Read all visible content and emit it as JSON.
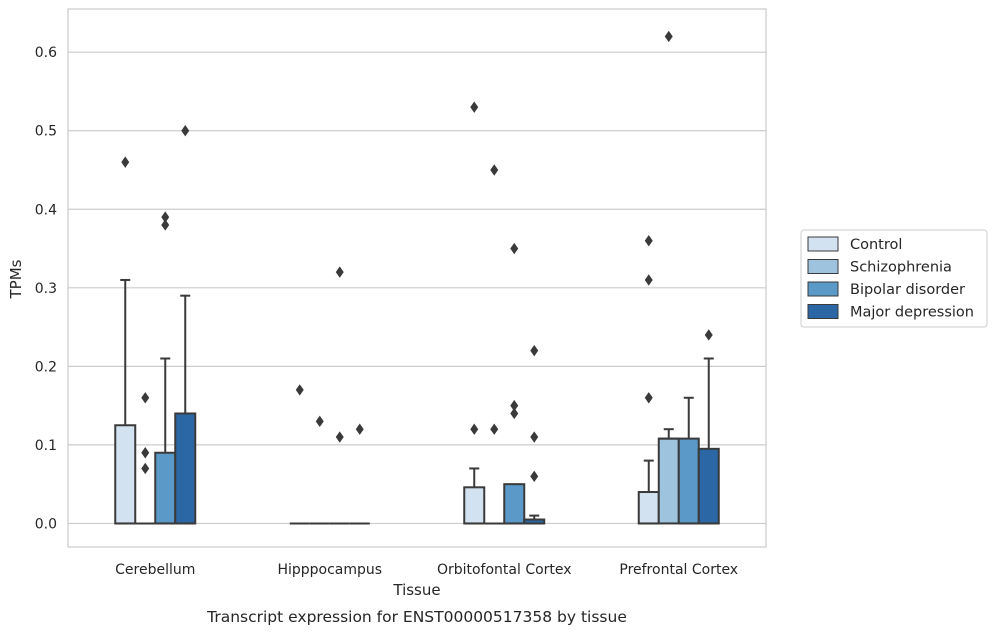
{
  "chart_data": {
    "type": "boxplot",
    "title": "",
    "caption": "Transcript expression for ENST00000517358 by tissue",
    "xlabel": "Tissue",
    "ylabel": "TPMs",
    "ylim": [
      -0.03,
      0.655
    ],
    "yticks": [
      "0.0",
      "0.1",
      "0.2",
      "0.3",
      "0.4",
      "0.5",
      "0.6"
    ],
    "grid": "horizontal",
    "legend_position": "right",
    "categories": [
      "Cerebellum",
      "Hipppocampus",
      "Orbitofontal Cortex",
      "Prefrontal Cortex"
    ],
    "series": [
      {
        "name": "Control",
        "color": "#d3e2f0",
        "boxes": [
          {
            "q1": 0,
            "median": 0,
            "q3": 0.125,
            "whisker_low": 0,
            "whisker_high": 0.31,
            "outliers": [
              0.46
            ]
          },
          {
            "q1": 0,
            "median": 0,
            "q3": 0,
            "whisker_low": 0,
            "whisker_high": 0,
            "outliers": [
              0.17
            ]
          },
          {
            "q1": 0,
            "median": 0,
            "q3": 0.046,
            "whisker_low": 0,
            "whisker_high": 0.07,
            "outliers": [
              0.53,
              0.12
            ]
          },
          {
            "q1": 0,
            "median": 0,
            "q3": 0.04,
            "whisker_low": 0,
            "whisker_high": 0.08,
            "outliers": [
              0.36,
              0.31,
              0.16
            ]
          }
        ]
      },
      {
        "name": "Schizophrenia",
        "color": "#9dc3de",
        "boxes": [
          {
            "q1": 0,
            "median": 0,
            "q3": 0,
            "whisker_low": 0,
            "whisker_high": 0,
            "outliers": [
              0.16,
              0.09,
              0.07
            ]
          },
          {
            "q1": 0,
            "median": 0,
            "q3": 0,
            "whisker_low": 0,
            "whisker_high": 0,
            "outliers": [
              0.13
            ]
          },
          {
            "q1": 0,
            "median": 0,
            "q3": 0,
            "whisker_low": 0,
            "whisker_high": 0,
            "outliers": [
              0.45,
              0.12
            ]
          },
          {
            "q1": 0,
            "median": 0.108,
            "q3": 0.108,
            "whisker_low": 0,
            "whisker_high": 0.12,
            "outliers": [
              0.62
            ]
          }
        ]
      },
      {
        "name": "Bipolar disorder",
        "color": "#5b9ac8",
        "boxes": [
          {
            "q1": 0,
            "median": 0,
            "q3": 0.09,
            "whisker_low": 0,
            "whisker_high": 0.21,
            "outliers": [
              0.39,
              0.38
            ]
          },
          {
            "q1": 0,
            "median": 0,
            "q3": 0,
            "whisker_low": 0,
            "whisker_high": 0,
            "outliers": [
              0.32,
              0.11
            ]
          },
          {
            "q1": 0,
            "median": 0,
            "q3": 0.05,
            "whisker_low": 0,
            "whisker_high": 0.05,
            "outliers": [
              0.35,
              0.15,
              0.14
            ]
          },
          {
            "q1": 0,
            "median": 0,
            "q3": 0.108,
            "whisker_low": 0,
            "whisker_high": 0.16,
            "outliers": []
          }
        ]
      },
      {
        "name": "Major depression",
        "color": "#2a67a4",
        "boxes": [
          {
            "q1": 0,
            "median": 0,
            "q3": 0.14,
            "whisker_low": 0,
            "whisker_high": 0.29,
            "outliers": [
              0.5
            ]
          },
          {
            "q1": 0,
            "median": 0,
            "q3": 0,
            "whisker_low": 0,
            "whisker_high": 0,
            "outliers": [
              0.12
            ]
          },
          {
            "q1": 0,
            "median": 0,
            "q3": 0.005,
            "whisker_low": 0,
            "whisker_high": 0.01,
            "outliers": [
              0.22,
              0.11,
              0.06
            ]
          },
          {
            "q1": 0,
            "median": 0,
            "q3": 0.095,
            "whisker_low": 0,
            "whisker_high": 0.21,
            "outliers": [
              0.24
            ]
          }
        ]
      }
    ]
  }
}
